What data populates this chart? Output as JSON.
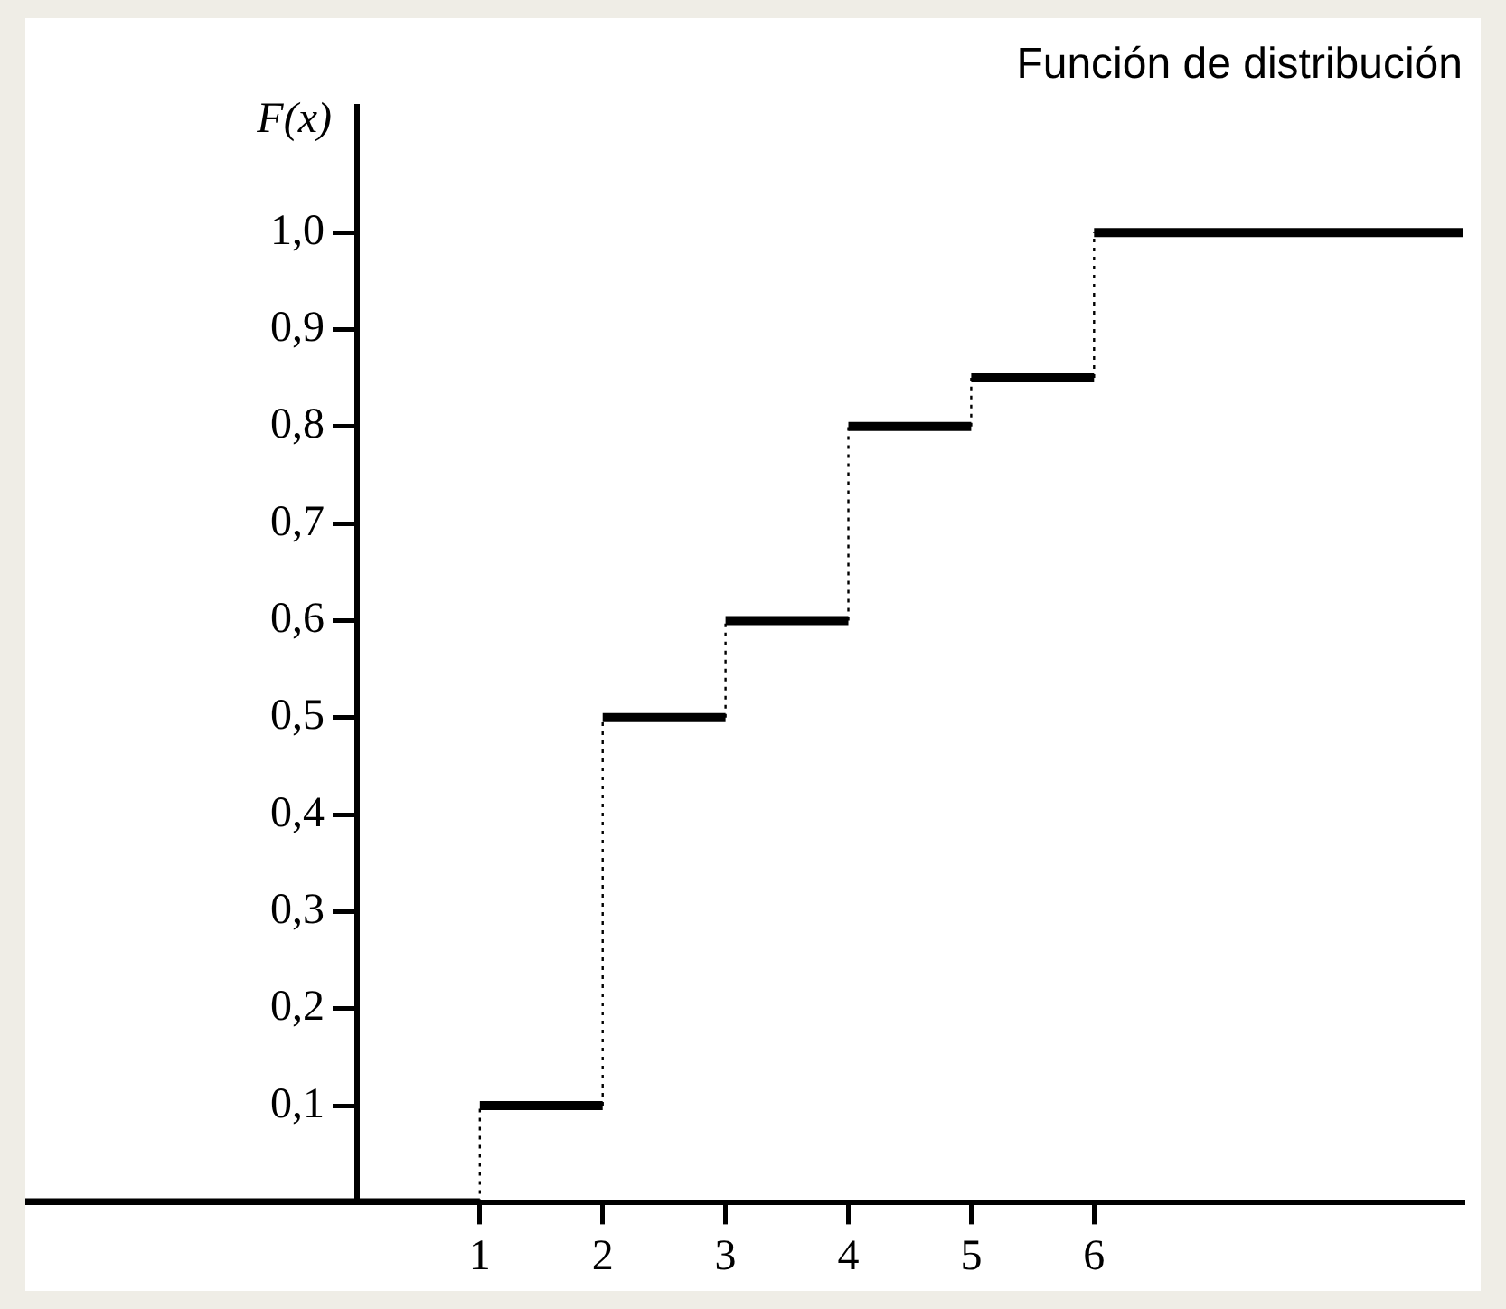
{
  "chart_data": {
    "type": "step",
    "title": "Función de distribución",
    "ylabel": "F(x)",
    "x": [
      -2.7,
      1,
      2,
      3,
      4,
      5,
      6,
      9
    ],
    "values": [
      0,
      0.1,
      0.5,
      0.6,
      0.8,
      0.85,
      1.0,
      1.0
    ],
    "color": "#000000",
    "xlim": [
      -2.7,
      9
    ],
    "xticks": [
      1,
      2,
      3,
      4,
      5,
      6
    ],
    "ylim": [
      0,
      1.13
    ],
    "yticks": [
      {
        "value": 0.1,
        "label": "0,1"
      },
      {
        "value": 0.2,
        "label": "0,2"
      },
      {
        "value": 0.3,
        "label": "0,3"
      },
      {
        "value": 0.4,
        "label": "0,4"
      },
      {
        "value": 0.5,
        "label": "0,5"
      },
      {
        "value": 0.6,
        "label": "0,6"
      },
      {
        "value": 0.7,
        "label": "0,7"
      },
      {
        "value": 0.8,
        "label": "0,8"
      },
      {
        "value": 0.9,
        "label": "0,9"
      },
      {
        "value": 1.0,
        "label": "1,0"
      }
    ],
    "grid": false,
    "legend": false,
    "line_style": "dotted"
  }
}
